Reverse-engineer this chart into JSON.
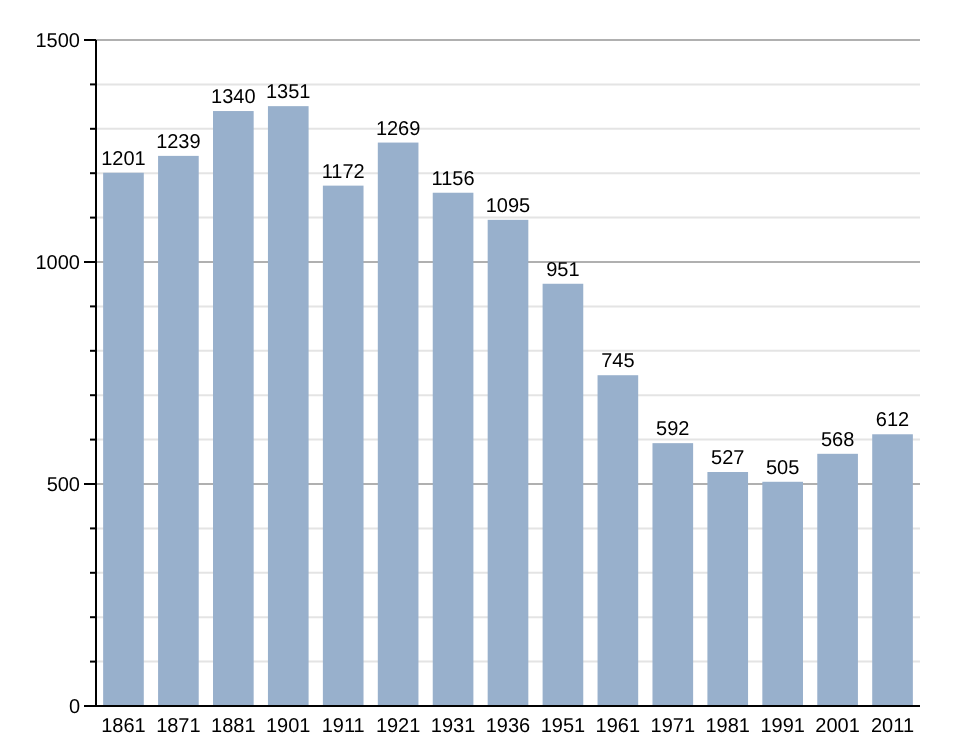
{
  "chart_data": {
    "type": "bar",
    "categories": [
      "1861",
      "1871",
      "1881",
      "1901",
      "1911",
      "1921",
      "1931",
      "1936",
      "1951",
      "1961",
      "1971",
      "1981",
      "1991",
      "2001",
      "2011"
    ],
    "values": [
      1201,
      1239,
      1340,
      1351,
      1172,
      1269,
      1156,
      1095,
      951,
      745,
      592,
      527,
      505,
      568,
      612
    ],
    "color": "#98b0cc",
    "data_labels": true,
    "grid": true,
    "ylim": [
      0,
      1500
    ],
    "yticks": [
      0,
      {
        "value": 100,
        "label": null
      },
      {
        "value": 200,
        "label": null
      },
      {
        "value": 300,
        "label": null
      },
      {
        "value": 400,
        "label": null
      },
      500,
      {
        "value": 600,
        "label": null
      },
      {
        "value": 700,
        "label": null
      },
      {
        "value": 800,
        "label": null
      },
      {
        "value": 900,
        "label": null
      },
      1000,
      {
        "value": 1100,
        "label": null
      },
      {
        "value": 1200,
        "label": null
      },
      {
        "value": 1300,
        "label": null
      },
      {
        "value": 1400,
        "label": null
      },
      1500
    ]
  }
}
